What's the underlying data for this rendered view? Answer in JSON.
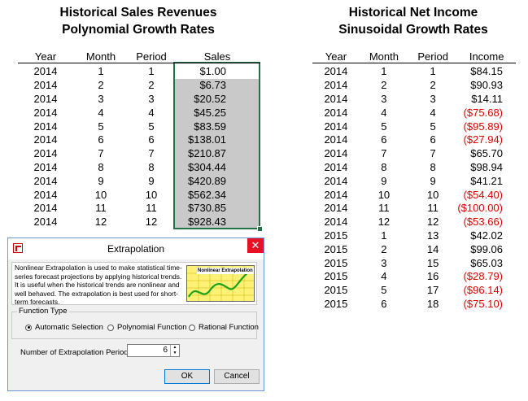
{
  "left_title": {
    "line1": "Historical Sales Revenues",
    "line2": "Polynomial Growth Rates"
  },
  "right_title": {
    "line1": "Historical Net Income",
    "line2": "Sinusoidal Growth Rates"
  },
  "sales_table": {
    "headers": [
      "Year",
      "Month",
      "Period",
      "Sales"
    ],
    "rows": [
      [
        "2014",
        "1",
        "1",
        "$1.00"
      ],
      [
        "2014",
        "2",
        "2",
        "$6.73"
      ],
      [
        "2014",
        "3",
        "3",
        "$20.52"
      ],
      [
        "2014",
        "4",
        "4",
        "$45.25"
      ],
      [
        "2014",
        "5",
        "5",
        "$83.59"
      ],
      [
        "2014",
        "6",
        "6",
        "$138.01"
      ],
      [
        "2014",
        "7",
        "7",
        "$210.87"
      ],
      [
        "2014",
        "8",
        "8",
        "$304.44"
      ],
      [
        "2014",
        "9",
        "9",
        "$420.89"
      ],
      [
        "2014",
        "10",
        "10",
        "$562.34"
      ],
      [
        "2014",
        "11",
        "11",
        "$730.85"
      ],
      [
        "2014",
        "12",
        "12",
        "$928.43"
      ]
    ]
  },
  "income_table": {
    "headers": [
      "Year",
      "Month",
      "Period",
      "Income"
    ],
    "rows": [
      [
        "2014",
        "1",
        "1",
        "$84.15"
      ],
      [
        "2014",
        "2",
        "2",
        "$90.93"
      ],
      [
        "2014",
        "3",
        "3",
        "$14.11"
      ],
      [
        "2014",
        "4",
        "4",
        "($75.68)"
      ],
      [
        "2014",
        "5",
        "5",
        "($95.89)"
      ],
      [
        "2014",
        "6",
        "6",
        "($27.94)"
      ],
      [
        "2014",
        "7",
        "7",
        "$65.70"
      ],
      [
        "2014",
        "8",
        "8",
        "$98.94"
      ],
      [
        "2014",
        "9",
        "9",
        "$41.21"
      ],
      [
        "2014",
        "10",
        "10",
        "($54.40)"
      ],
      [
        "2014",
        "11",
        "11",
        "($100.00)"
      ],
      [
        "2014",
        "12",
        "12",
        "($53.66)"
      ],
      [
        "2015",
        "1",
        "13",
        "$42.02"
      ],
      [
        "2015",
        "2",
        "14",
        "$99.06"
      ],
      [
        "2015",
        "3",
        "15",
        "$65.03"
      ],
      [
        "2015",
        "4",
        "16",
        "($28.79)"
      ],
      [
        "2015",
        "5",
        "17",
        "($96.14)"
      ],
      [
        "2015",
        "6",
        "18",
        "($75.10)"
      ]
    ]
  },
  "dialog": {
    "title": "Extrapolation",
    "close": "✕",
    "description": "Nonlinear Extrapolation is used to make statistical time-series forecast projections by applying historical trends. It is useful when the historical trends are nonlinear and well behaved. The extrapolation is best used for short-term forecasts.",
    "thumbnail_label": "Nonlinear Extrapolation",
    "function_type_label": "Function Type",
    "options": [
      "Automatic Selection",
      "Polynomial Function",
      "Rational Function"
    ],
    "selected_option": "Automatic Selection",
    "periods_label": "Number of Extrapolation Periods",
    "periods_value": "6",
    "ok_label": "OK",
    "cancel_label": "Cancel"
  },
  "colors": {
    "negative": "#e00000",
    "selection": "#217346",
    "selected_fill": "#c9c9c9",
    "close": "#e81123"
  }
}
